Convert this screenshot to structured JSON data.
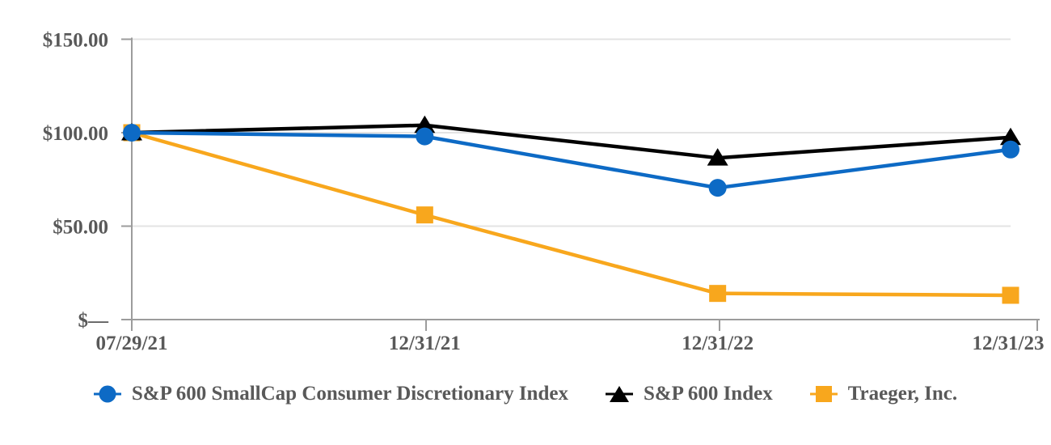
{
  "chart_data": {
    "type": "line",
    "title": "",
    "categories": [
      "07/29/21",
      "12/31/21",
      "12/31/22",
      "12/31/23"
    ],
    "series": [
      {
        "name": "S&P 600 SmallCap Consumer Discretionary Index",
        "marker": "circle",
        "color": "#0D6AC5",
        "values": [
          100,
          98,
          70.5,
          91
        ]
      },
      {
        "name": "S&P 600 Index",
        "marker": "triangle",
        "color": "#000000",
        "values": [
          100,
          104,
          86.5,
          97.5
        ]
      },
      {
        "name": "Traeger, Inc.",
        "marker": "square",
        "color": "#F8A71D",
        "values": [
          100,
          56,
          14,
          13
        ]
      }
    ],
    "y_axis": {
      "ylim": [
        0,
        150
      ],
      "ticks": [
        {
          "value": 0,
          "label": "$—"
        },
        {
          "value": 50,
          "label": "$50.00"
        },
        {
          "value": 100,
          "label": "$100.00"
        },
        {
          "value": 150,
          "label": "$150.00"
        }
      ]
    },
    "xlabel": "",
    "ylabel": "",
    "grid": "horizontal",
    "legend_position": "bottom",
    "colors": {
      "axis": "#9C9C9C",
      "gridline": "#E3E3E3",
      "label_text": "#595959",
      "background": "#FFFFFF"
    }
  }
}
